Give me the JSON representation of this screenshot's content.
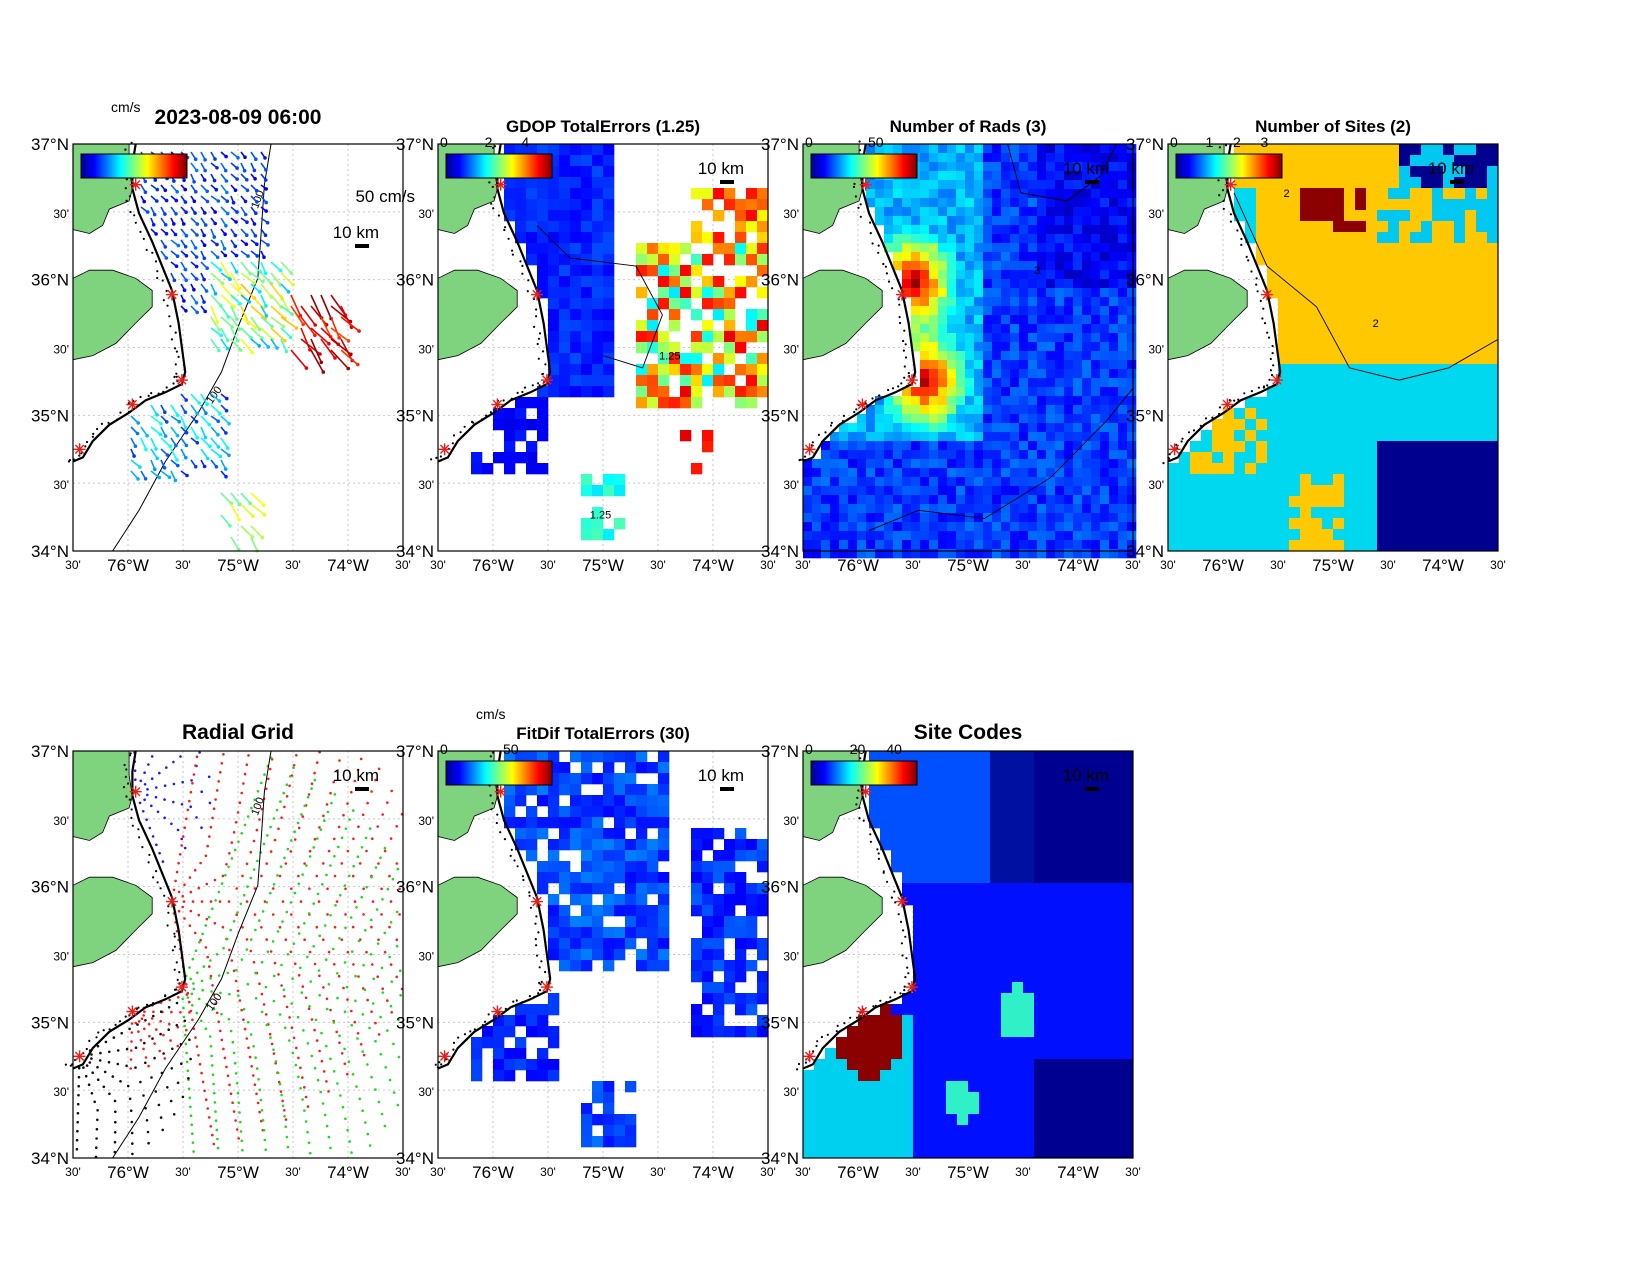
{
  "figure": {
    "timestamp": "2023-08-09 06:00",
    "colors": {
      "land": "#7fd37f",
      "site_marker": "#e8201a",
      "grid_line": "#c8c8c8"
    },
    "axes": {
      "lat_labels": [
        "37°N",
        "30'",
        "36°N",
        "30'",
        "35°N",
        "30'",
        "34°N"
      ],
      "lon_labels": [
        "30'",
        "76°W",
        "30'",
        "75°W",
        "30'",
        "74°W",
        "30'"
      ]
    }
  },
  "panels": [
    {
      "id": "velocity",
      "title": "2023-08-09 06:00",
      "colorbar": {
        "unit": "cm/s",
        "ticks": []
      },
      "vector_scale_label": "50 cm/s",
      "scale_label": "10 km",
      "contour_label": "100"
    },
    {
      "id": "gdop",
      "title": "GDOP TotalErrors (1.25)",
      "colorbar": {
        "unit": "",
        "ticks": [
          "0",
          "2",
          "4"
        ]
      },
      "scale_label": "10 km",
      "contour_label": "1.25"
    },
    {
      "id": "rads",
      "title": "Number of Rads (3)",
      "colorbar": {
        "unit": "",
        "ticks": [
          "0",
          "50"
        ]
      },
      "scale_label": "10 km",
      "contour_label": "3"
    },
    {
      "id": "sites",
      "title": "Number of Sites (2)",
      "colorbar": {
        "unit": "",
        "ticks": [
          "0",
          "1",
          "2",
          "3"
        ]
      },
      "scale_label": "10 km",
      "contour_label": "2"
    },
    {
      "id": "radial",
      "title": "Radial Grid",
      "scale_label": "10 km",
      "contour_label": "100"
    },
    {
      "id": "fitdif",
      "title": "FitDif TotalErrors (30)",
      "colorbar": {
        "unit": "cm/s",
        "ticks": [
          "0",
          "50"
        ]
      },
      "scale_label": "10 km"
    },
    {
      "id": "codes",
      "title": "Site Codes",
      "colorbar": {
        "unit": "",
        "ticks": [
          "0",
          "20",
          "40"
        ]
      },
      "scale_label": "10 km"
    }
  ]
}
